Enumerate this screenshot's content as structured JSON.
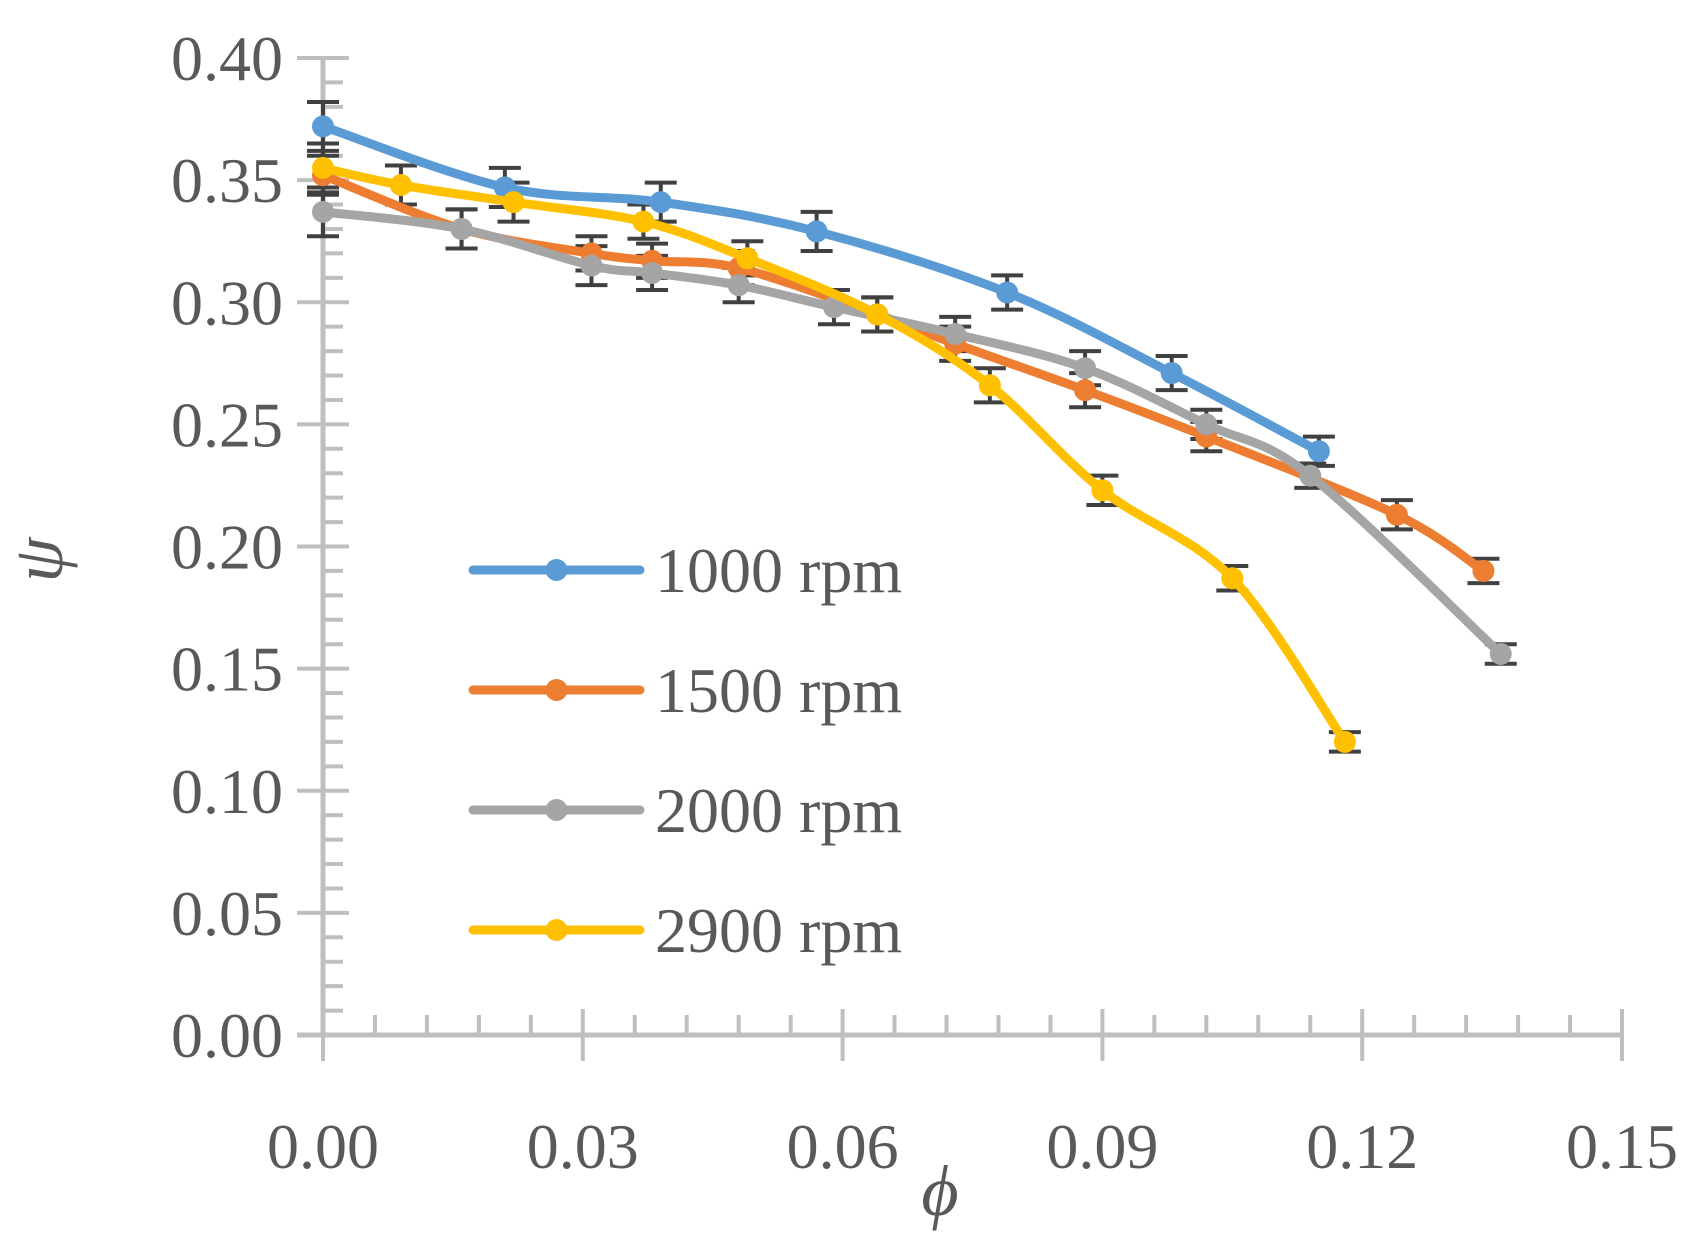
{
  "chart_data": {
    "type": "line",
    "title": "",
    "xlabel": "ϕ",
    "ylabel": "ψ",
    "xlim": [
      0,
      0.15
    ],
    "ylim": [
      0,
      0.4
    ],
    "x_ticks": [
      "0.00",
      "0.03",
      "0.06",
      "0.09",
      "0.12",
      "0.15"
    ],
    "y_ticks": [
      "0.00",
      "0.05",
      "0.10",
      "0.15",
      "0.20",
      "0.25",
      "0.30",
      "0.35",
      "0.40"
    ],
    "legend_position": "left-center",
    "error_bar_color": "#404040",
    "axis_color": "#bfbfbf",
    "series": [
      {
        "name": "1000 rpm",
        "color": "#5b9bd5",
        "x": [
          0.0,
          0.021,
          0.039,
          0.057,
          0.079,
          0.098,
          0.115
        ],
        "values": [
          0.372,
          0.347,
          0.341,
          0.329,
          0.304,
          0.271,
          0.239
        ],
        "errors": [
          0.01,
          0.008,
          0.008,
          0.008,
          0.007,
          0.007,
          0.006
        ]
      },
      {
        "name": "1500 rpm",
        "color": "#ed7d31",
        "x": [
          0.0,
          0.016,
          0.031,
          0.038,
          0.048,
          0.064,
          0.073,
          0.088,
          0.102,
          0.124,
          0.134
        ],
        "values": [
          0.352,
          0.33,
          0.32,
          0.317,
          0.314,
          0.295,
          0.283,
          0.264,
          0.245,
          0.213,
          0.19
        ],
        "errors": [
          0.008,
          0.008,
          0.007,
          0.007,
          0.007,
          0.007,
          0.007,
          0.007,
          0.006,
          0.006,
          0.005
        ]
      },
      {
        "name": "2000 rpm",
        "color": "#a5a5a5",
        "x": [
          0.0,
          0.016,
          0.031,
          0.038,
          0.048,
          0.059,
          0.073,
          0.088,
          0.102,
          0.114,
          0.136
        ],
        "values": [
          0.337,
          0.33,
          0.315,
          0.312,
          0.307,
          0.298,
          0.287,
          0.273,
          0.25,
          0.229,
          0.156
        ],
        "errors": [
          0.01,
          0.008,
          0.008,
          0.007,
          0.007,
          0.007,
          0.007,
          0.007,
          0.006,
          0.005,
          0.004
        ]
      },
      {
        "name": "2900 rpm",
        "color": "#ffc000",
        "x": [
          0.0,
          0.009,
          0.022,
          0.037,
          0.049,
          0.064,
          0.077,
          0.09,
          0.105,
          0.118
        ],
        "values": [
          0.355,
          0.348,
          0.341,
          0.333,
          0.318,
          0.295,
          0.266,
          0.223,
          0.187,
          0.12
        ],
        "errors": [
          0.01,
          0.008,
          0.008,
          0.007,
          0.007,
          0.007,
          0.007,
          0.006,
          0.005,
          0.004
        ]
      }
    ]
  }
}
